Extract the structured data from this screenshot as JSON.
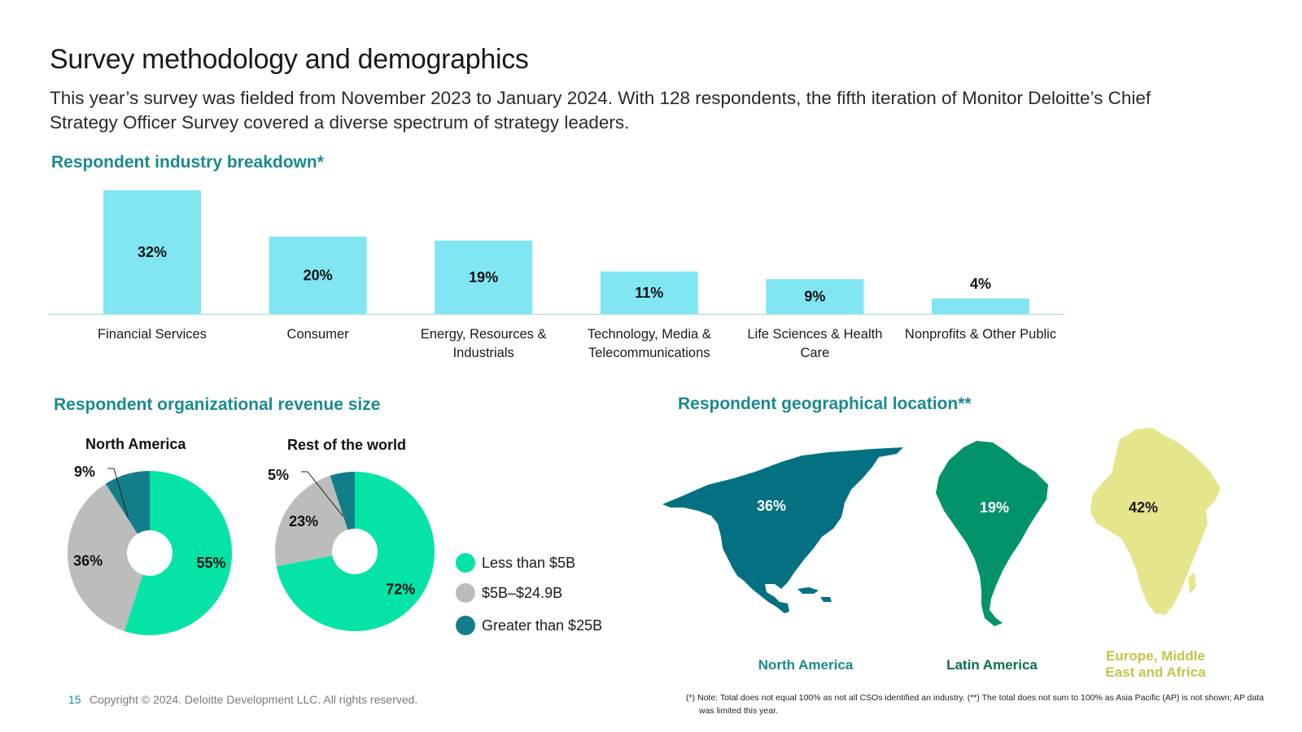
{
  "title": "Survey methodology and demographics",
  "subtitle": "This year’s survey was fielded from November 2023 to January 2024. With 128 respondents, the fifth iteration of Monitor Deloitte’s Chief Strategy Officer Survey covered a diverse spectrum of strategy leaders.",
  "colors": {
    "teal_heading": "#1a8a90",
    "bar": "#80e6f2",
    "less_than_5b": "#05e3a6",
    "mid_5b_25b": "#bcbcbc",
    "greater_than_25b": "#127e8a",
    "north_america_map": "#047183",
    "latin_america_map": "#03936b",
    "emea_map": "#e5e58c",
    "emea_label": "#c4c44a"
  },
  "sections": {
    "industry": "Respondent industry breakdown*",
    "revenue": "Respondent organizational revenue size",
    "geo": "Respondent geographical location**"
  },
  "chart_data": [
    {
      "type": "bar",
      "title": "Respondent industry breakdown*",
      "categories": [
        "Financial Services",
        "Consumer",
        "Energy, Resources & Industrials",
        "Technology, Media & Telecommunications",
        "Life Sciences & Health Care",
        "Nonprofits & Other Public"
      ],
      "values": [
        32,
        20,
        19,
        11,
        9,
        4
      ],
      "value_labels": [
        "32%",
        "20%",
        "19%",
        "11%",
        "9%",
        "4%"
      ],
      "ylim": [
        0,
        32
      ]
    },
    {
      "type": "pie",
      "title": "North America",
      "categories": [
        "Less than $5B",
        "$5B–$24.9B",
        "Greater than $25B"
      ],
      "values": [
        55,
        36,
        9
      ],
      "value_labels": [
        "55%",
        "36%",
        "9%"
      ]
    },
    {
      "type": "pie",
      "title": "Rest of the world",
      "categories": [
        "Less than $5B",
        "$5B–$24.9B",
        "Greater than $25B"
      ],
      "values": [
        72,
        23,
        5
      ],
      "value_labels": [
        "72%",
        "23%",
        "5%"
      ]
    },
    {
      "type": "bar",
      "title": "Respondent geographical location**",
      "categories": [
        "North America",
        "Latin America",
        "Europe, Middle East and Africa"
      ],
      "values": [
        36,
        19,
        42
      ],
      "value_labels": [
        "36%",
        "19%",
        "42%"
      ]
    }
  ],
  "legend": [
    "Less than $5B",
    "$5B–$24.9B",
    "Greater than $25B"
  ],
  "regions": {
    "na_label": "North America",
    "la_label": "Latin America",
    "emea_label_line1": "Europe, Middle",
    "emea_label_line2": "East and Africa"
  },
  "footer": {
    "page": "15",
    "copyright": "Copyright © 2024. Deloitte Development LLC. All rights reserved.",
    "note": "(*) Note: Total does not equal 100% as not all CSOs identified an industry. (**) The total does not sum to 100% as Asia Pacific (AP) is not shown; AP data was limited this year."
  }
}
